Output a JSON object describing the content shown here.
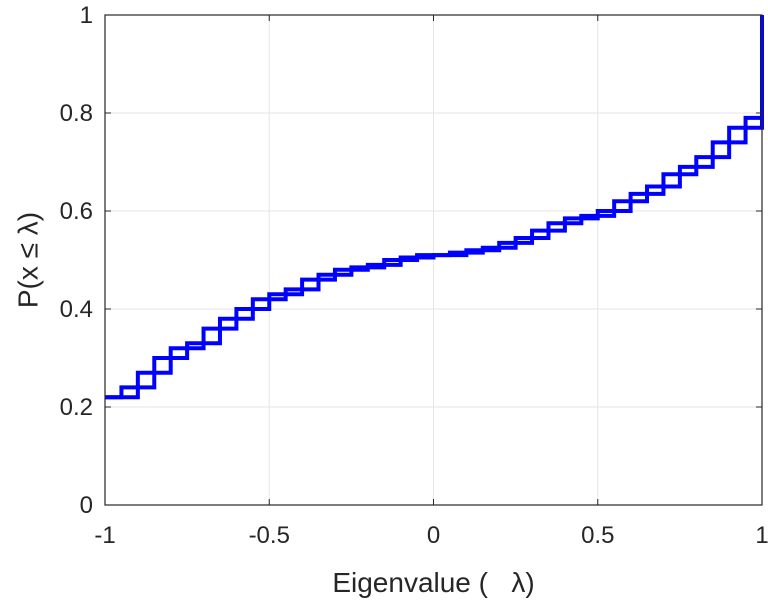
{
  "chart_data": {
    "type": "line",
    "subtype": "stairs",
    "title": "",
    "xlabel": "Eigenvalue (   λ)",
    "ylabel": "P(x ≤ λ)",
    "xlim": [
      -1,
      1
    ],
    "ylim": [
      0,
      1
    ],
    "xticks": [
      -1,
      -0.5,
      0,
      0.5,
      1
    ],
    "xtick_labels": [
      "-1",
      "-0.5",
      "0",
      "0.5",
      "1"
    ],
    "yticks": [
      0,
      0.2,
      0.4,
      0.6,
      0.8,
      1
    ],
    "ytick_labels": [
      "0",
      "0.2",
      "0.4",
      "0.6",
      "0.8",
      "1"
    ],
    "grid": true,
    "box": true,
    "series": [
      {
        "color": "#0000ff",
        "x": [
          -1.0,
          -0.95,
          -0.9,
          -0.85,
          -0.8,
          -0.75,
          -0.7,
          -0.65,
          -0.6,
          -0.55,
          -0.5,
          -0.45,
          -0.4,
          -0.35,
          -0.3,
          -0.25,
          -0.2,
          -0.15,
          -0.1,
          -0.05,
          0.0,
          0.05,
          0.1,
          0.15,
          0.2,
          0.25,
          0.3,
          0.35,
          0.4,
          0.45,
          0.5,
          0.55,
          0.6,
          0.65,
          0.7,
          0.75,
          0.8,
          0.85,
          0.9,
          0.95,
          1.0
        ],
        "upper": [
          0.22,
          0.24,
          0.27,
          0.3,
          0.32,
          0.33,
          0.36,
          0.38,
          0.4,
          0.42,
          0.43,
          0.44,
          0.46,
          0.47,
          0.48,
          0.485,
          0.49,
          0.5,
          0.505,
          0.51,
          0.51,
          0.515,
          0.52,
          0.525,
          0.535,
          0.545,
          0.56,
          0.575,
          0.585,
          0.59,
          0.6,
          0.62,
          0.635,
          0.65,
          0.675,
          0.69,
          0.71,
          0.74,
          0.77,
          0.79,
          1.0
        ],
        "lower": [
          0.22,
          0.22,
          0.24,
          0.27,
          0.3,
          0.32,
          0.33,
          0.36,
          0.38,
          0.4,
          0.42,
          0.43,
          0.44,
          0.46,
          0.47,
          0.48,
          0.485,
          0.49,
          0.5,
          0.505,
          0.51,
          0.51,
          0.515,
          0.52,
          0.525,
          0.535,
          0.545,
          0.56,
          0.575,
          0.585,
          0.59,
          0.6,
          0.62,
          0.635,
          0.65,
          0.675,
          0.69,
          0.71,
          0.74,
          0.77,
          0.8
        ]
      }
    ]
  }
}
